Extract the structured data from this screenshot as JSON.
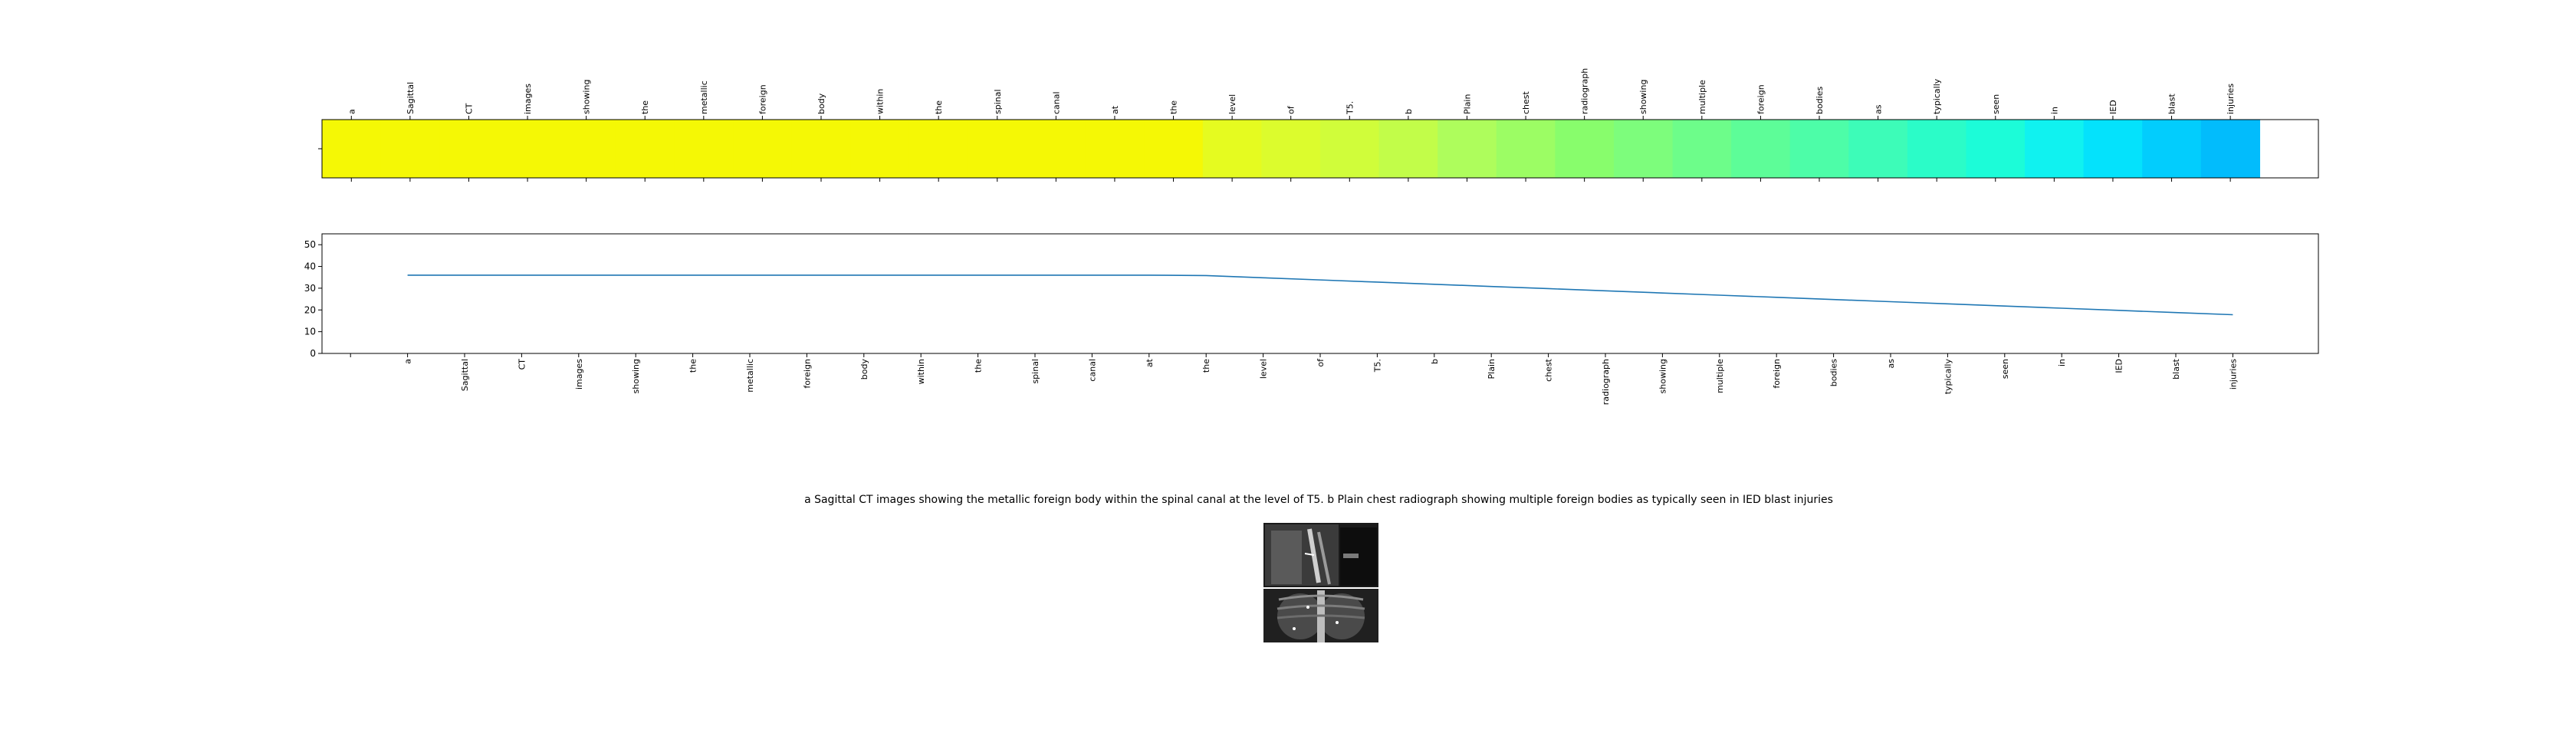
{
  "caption": "a Sagittal CT images showing the metallic foreign body within the spinal canal at the level of T5. b Plain chest radiograph showing multiple foreign bodies as typically seen in IED blast injuries",
  "images": [
    {
      "name": "sagittal-ct-image"
    },
    {
      "name": "chest-radiograph-image"
    }
  ],
  "chart_data": [
    {
      "type": "heatmap",
      "tokens": [
        "a",
        "Sagittal",
        "CT",
        "images",
        "showing",
        "the",
        "metallic",
        "foreign",
        "body",
        "within",
        "the",
        "spinal",
        "canal",
        "at",
        "the",
        "level",
        "of",
        "T5.",
        "b",
        "Plain",
        "chest",
        "radiograph",
        "showing",
        "multiple",
        "foreign",
        "bodies",
        "as",
        "typically",
        "seen",
        "in",
        "IED",
        "blast",
        "injuries"
      ],
      "colors": [
        "#f5f805",
        "#f5f805",
        "#f5f805",
        "#f5f805",
        "#f5f805",
        "#f5f805",
        "#f5f805",
        "#f5f805",
        "#f5f805",
        "#f5f805",
        "#f5f805",
        "#f5f805",
        "#f5f805",
        "#f5f805",
        "#f5f805",
        "#e5fb20",
        "#dcfc2d",
        "#d0fd3a",
        "#c2fd49",
        "#aefd5c",
        "#9cfd64",
        "#88fd6c",
        "#7dfd7c",
        "#6dfd8a",
        "#5dfd98",
        "#4dfda8",
        "#3dfcb8",
        "#2bfcc8",
        "#1cfcd8",
        "#10f2f0",
        "#04e2fc",
        "#02cdfd",
        "#02bcfc"
      ],
      "xlim": [
        -0.5,
        33.5
      ]
    },
    {
      "type": "line",
      "x": [
        "a",
        "Sagittal",
        "CT",
        "images",
        "showing",
        "the",
        "metallic",
        "foreign",
        "body",
        "within",
        "the",
        "spinal",
        "canal",
        "at",
        "the",
        "level",
        "of",
        "T5.",
        "b",
        "Plain",
        "chest",
        "radiograph",
        "showing",
        "multiple",
        "foreign",
        "bodies",
        "as",
        "typically",
        "seen",
        "in",
        "IED",
        "blast",
        "injuries"
      ],
      "series": [
        {
          "values": [
            36,
            36,
            36,
            36,
            36,
            36,
            36,
            36,
            36,
            36,
            36,
            36,
            36,
            36,
            35.8,
            34.8,
            33.8,
            32.8,
            31.8,
            30.8,
            29.8,
            28.8,
            27.8,
            26.8,
            25.8,
            24.8,
            23.8,
            22.8,
            21.8,
            20.8,
            19.8,
            18.8,
            17.8
          ]
        }
      ],
      "yticks": [
        "0",
        "10",
        "20",
        "30",
        "40",
        "50"
      ],
      "ylim": [
        0,
        55
      ],
      "color": "#1f77b4",
      "grid": false
    }
  ]
}
